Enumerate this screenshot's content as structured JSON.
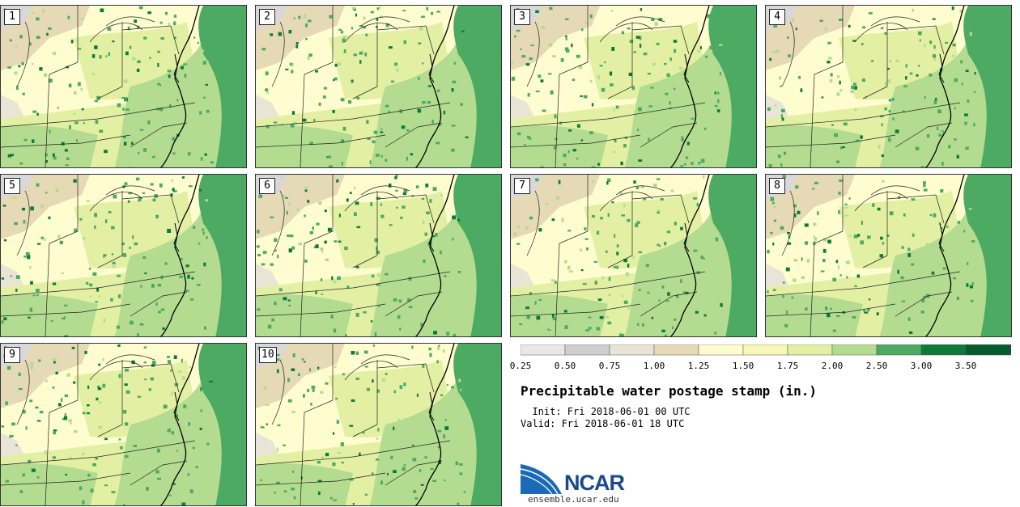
{
  "panels": [
    "1",
    "2",
    "3",
    "4",
    "5",
    "6",
    "7",
    "8",
    "9",
    "10"
  ],
  "colorbar": {
    "ticks": [
      "0.25",
      "0.50",
      "0.75",
      "1.00",
      "1.25",
      "1.50",
      "1.75",
      "2.00",
      "2.50",
      "3.00",
      "3.50"
    ],
    "colors": [
      "#e8e8e8",
      "#cfcfcf",
      "#e9e5d6",
      "#e6d9b5",
      "#fffdd0",
      "#f8f7b7",
      "#e3f0a4",
      "#b4dc90",
      "#4caa63",
      "#0c7b3a",
      "#065a2b",
      "#0a2ba6"
    ]
  },
  "title": "Precipitable water postage stamp (in.)",
  "init": "  Init: Fri 2018-06-01 00 UTC",
  "valid": "Valid: Fri 2018-06-01 18 UTC",
  "logo": {
    "name": "NCAR",
    "url": "ensemble.ucar.edu"
  }
}
